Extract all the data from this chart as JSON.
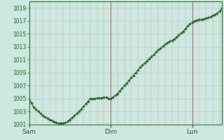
{
  "background_color": "#cce8e0",
  "plot_bg_color": "#cce8e0",
  "line_color": "#1a5c1a",
  "marker_color": "#1a5c1a",
  "ylim": [
    1001,
    1020
  ],
  "yticks": [
    1001,
    1003,
    1005,
    1007,
    1009,
    1011,
    1013,
    1015,
    1017,
    1019
  ],
  "day_labels": [
    "Sam",
    "Dim",
    "Lun"
  ],
  "day_positions": [
    0,
    36,
    72
  ],
  "num_points": 86,
  "x_values": [
    0,
    1,
    2,
    3,
    4,
    5,
    6,
    7,
    8,
    9,
    10,
    11,
    12,
    13,
    14,
    15,
    16,
    17,
    18,
    19,
    20,
    21,
    22,
    23,
    24,
    25,
    26,
    27,
    28,
    29,
    30,
    31,
    32,
    33,
    34,
    35,
    36,
    37,
    38,
    39,
    40,
    41,
    42,
    43,
    44,
    45,
    46,
    47,
    48,
    49,
    50,
    51,
    52,
    53,
    54,
    55,
    56,
    57,
    58,
    59,
    60,
    61,
    62,
    63,
    64,
    65,
    66,
    67,
    68,
    69,
    70,
    71,
    72,
    73,
    74,
    75,
    76,
    77,
    78,
    79,
    80,
    81,
    82,
    83,
    84,
    85
  ],
  "y_values": [
    1004.8,
    1004.3,
    1003.7,
    1003.4,
    1003.0,
    1002.7,
    1002.4,
    1002.2,
    1002.0,
    1001.8,
    1001.6,
    1001.4,
    1001.3,
    1001.2,
    1001.2,
    1001.2,
    1001.3,
    1001.5,
    1001.8,
    1002.1,
    1002.4,
    1002.7,
    1003.0,
    1003.4,
    1003.8,
    1004.2,
    1004.6,
    1005.0,
    1005.0,
    1005.0,
    1005.1,
    1005.1,
    1005.1,
    1005.2,
    1005.2,
    1005.0,
    1005.0,
    1005.2,
    1005.5,
    1005.8,
    1006.2,
    1006.6,
    1007.0,
    1007.4,
    1007.8,
    1008.2,
    1008.6,
    1009.0,
    1009.4,
    1009.8,
    1010.2,
    1010.5,
    1010.8,
    1011.2,
    1011.5,
    1011.8,
    1012.2,
    1012.5,
    1012.8,
    1013.1,
    1013.4,
    1013.6,
    1013.8,
    1014.0,
    1014.2,
    1014.5,
    1014.8,
    1015.1,
    1015.4,
    1015.8,
    1016.2,
    1016.5,
    1016.8,
    1017.0,
    1017.1,
    1017.2,
    1017.2,
    1017.3,
    1017.4,
    1017.5,
    1017.6,
    1017.8,
    1018.0,
    1018.2,
    1018.5,
    1018.9
  ],
  "vline_major_color": "#b05050",
  "vline_minor_color": "#d4a0a0",
  "hline_color": "#b8ccc8",
  "tick_color": "#1a5c1a",
  "spine_color": "#1a5c1a",
  "tick_fontsize": 5.5,
  "xlabel_fontsize": 6.5
}
